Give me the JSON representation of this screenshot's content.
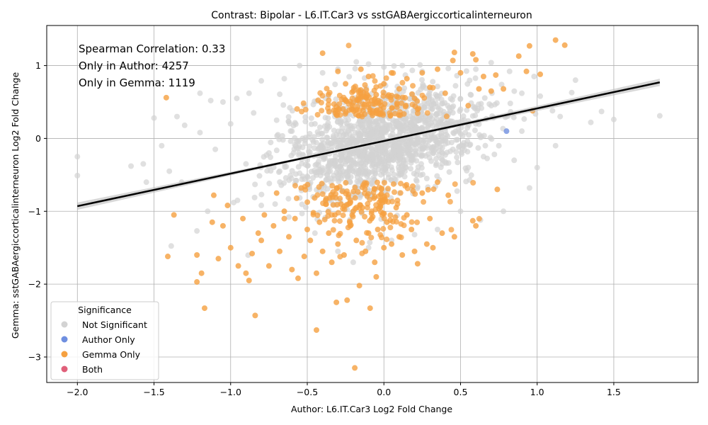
{
  "chart_data": {
    "type": "scatter",
    "title": "Contrast: Bipolar - L6.IT.Car3 vs sstGABAergiccorticalinterneuron",
    "xlabel": "Author: L6.IT.Car3 Log2 Fold Change",
    "ylabel": "Gemma: sstGABAergiccorticalinterneuron Log2 Fold Change",
    "xlim": [
      -2.2,
      2.05
    ],
    "ylim": [
      -3.35,
      1.55
    ],
    "xticks": [
      "-2.0",
      "-1.5",
      "-1.0",
      "-0.5",
      "0.0",
      "0.5",
      "1.0",
      "1.5"
    ],
    "yticks": [
      "1",
      "0",
      "-1",
      "-2",
      "-3"
    ],
    "grid": true,
    "annotations": [
      "Spearman Correlation: 0.33",
      "Only in Author: 4257",
      "Only in Gemma: 1119"
    ],
    "legend": {
      "title": "Significance",
      "placement": "lower-left",
      "entries": [
        {
          "label": "Not Significant",
          "color": "#d3d3d3"
        },
        {
          "label": "Author Only",
          "color": "#6f8fe0"
        },
        {
          "label": "Gemma Only",
          "color": "#f5a040"
        },
        {
          "label": "Both",
          "color": "#e0607a"
        }
      ]
    },
    "regression_line": {
      "x": [
        -2.0,
        1.8
      ],
      "y": [
        -0.93,
        0.77
      ],
      "color": "#000000"
    },
    "series": [
      {
        "name": "Not Significant",
        "color": "#d3d3d3",
        "points": [
          [
            -2.0,
            -0.25
          ],
          [
            -2.0,
            -0.51
          ],
          [
            -1.5,
            0.28
          ],
          [
            -1.35,
            0.3
          ],
          [
            -1.2,
            0.62
          ],
          [
            -1.13,
            0.52
          ],
          [
            -1.05,
            0.5
          ],
          [
            -0.96,
            0.55
          ],
          [
            -0.88,
            0.62
          ],
          [
            -0.8,
            0.79
          ],
          [
            -0.65,
            0.82
          ],
          [
            -0.55,
            1.0
          ],
          [
            -0.4,
            0.9
          ],
          [
            -0.3,
            0.95
          ],
          [
            -0.18,
            1.05
          ],
          [
            -0.1,
            1.02
          ],
          [
            0.0,
            0.98
          ],
          [
            0.12,
            1.0
          ],
          [
            0.25,
            0.92
          ],
          [
            0.42,
            0.96
          ],
          [
            0.6,
            0.95
          ],
          [
            0.7,
            1.04
          ],
          [
            0.82,
            0.92
          ],
          [
            0.9,
            0.62
          ],
          [
            0.98,
            0.85
          ],
          [
            1.02,
            0.58
          ],
          [
            1.1,
            0.38
          ],
          [
            1.15,
            0.3
          ],
          [
            1.25,
            0.8
          ],
          [
            1.35,
            0.22
          ],
          [
            1.42,
            0.37
          ],
          [
            1.5,
            0.26
          ],
          [
            1.8,
            0.31
          ],
          [
            1.12,
            -0.1
          ],
          [
            1.0,
            -0.4
          ],
          [
            0.95,
            -0.68
          ],
          [
            0.78,
            -1.0
          ],
          [
            0.63,
            -1.12
          ],
          [
            0.5,
            -1.0
          ],
          [
            0.35,
            -1.25
          ],
          [
            0.2,
            -1.32
          ],
          [
            0.05,
            -1.4
          ],
          [
            -0.1,
            -1.5
          ],
          [
            -0.2,
            -1.7
          ],
          [
            -0.3,
            -1.55
          ],
          [
            -0.45,
            -1.3
          ],
          [
            -0.62,
            -1.08
          ],
          [
            -0.8,
            -0.92
          ],
          [
            -0.98,
            -0.88
          ],
          [
            -1.15,
            -1.0
          ],
          [
            -1.22,
            -1.27
          ],
          [
            -1.32,
            -0.6
          ],
          [
            -1.4,
            -0.45
          ],
          [
            -1.55,
            -0.6
          ],
          [
            -1.65,
            -0.38
          ],
          [
            -1.57,
            -0.35
          ],
          [
            -1.45,
            -0.1
          ],
          [
            -1.3,
            0.18
          ],
          [
            -1.2,
            0.08
          ],
          [
            -1.1,
            -0.15
          ],
          [
            -1.0,
            0.2
          ],
          [
            -0.9,
            -0.35
          ],
          [
            -0.85,
            0.35
          ],
          [
            -0.75,
            -0.2
          ],
          [
            -0.7,
            0.25
          ],
          [
            -0.68,
            -0.45
          ],
          [
            -0.6,
            0.1
          ],
          [
            -0.58,
            -0.62
          ],
          [
            -0.52,
            0.45
          ],
          [
            -0.5,
            -0.3
          ],
          [
            -0.45,
            0.2
          ],
          [
            -0.42,
            -0.12
          ],
          [
            -0.38,
            0.55
          ],
          [
            -0.35,
            -0.45
          ],
          [
            -0.32,
            0.3
          ],
          [
            -0.28,
            -0.2
          ],
          [
            -0.25,
            0.1
          ],
          [
            -0.22,
            -0.6
          ],
          [
            -0.2,
            0.4
          ],
          [
            -0.18,
            -0.05
          ],
          [
            -0.15,
            0.65
          ],
          [
            -0.12,
            -0.35
          ],
          [
            -0.1,
            0.2
          ],
          [
            -0.08,
            -0.15
          ],
          [
            -0.05,
            0.5
          ],
          [
            -0.02,
            -0.5
          ],
          [
            0.0,
            0.1
          ],
          [
            0.02,
            -0.25
          ],
          [
            0.05,
            0.35
          ],
          [
            0.08,
            -0.1
          ],
          [
            0.1,
            0.6
          ],
          [
            0.12,
            -0.45
          ],
          [
            0.15,
            0.2
          ],
          [
            0.18,
            -0.3
          ],
          [
            0.2,
            0.45
          ],
          [
            0.22,
            -0.05
          ],
          [
            0.25,
            0.15
          ],
          [
            0.28,
            -0.55
          ],
          [
            0.3,
            0.3
          ],
          [
            0.32,
            -0.2
          ],
          [
            0.35,
            0.55
          ],
          [
            0.38,
            -0.35
          ],
          [
            0.4,
            0.1
          ],
          [
            0.45,
            -0.15
          ],
          [
            0.5,
            0.4
          ],
          [
            0.55,
            -0.4
          ],
          [
            0.6,
            0.2
          ],
          [
            0.65,
            -0.25
          ],
          [
            0.7,
            0.45
          ],
          [
            0.75,
            -0.1
          ],
          [
            0.8,
            0.3
          ],
          [
            0.85,
            -0.3
          ],
          [
            0.9,
            0.1
          ]
        ]
      },
      {
        "name": "Author Only",
        "color": "#6f8fe0",
        "points": [
          [
            0.8,
            0.1
          ]
        ]
      },
      {
        "name": "Gemma Only",
        "color": "#f5a040",
        "points": [
          [
            -1.42,
            0.56
          ],
          [
            -1.41,
            -1.62
          ],
          [
            -1.37,
            -1.05
          ],
          [
            -1.22,
            -1.6
          ],
          [
            -1.22,
            -1.97
          ],
          [
            -1.19,
            -1.85
          ],
          [
            -1.17,
            -2.33
          ],
          [
            -1.12,
            -1.15
          ],
          [
            -1.11,
            -0.78
          ],
          [
            -1.08,
            -1.65
          ],
          [
            -1.05,
            -1.2
          ],
          [
            -1.02,
            -0.92
          ],
          [
            -1.0,
            -1.5
          ],
          [
            -0.95,
            -1.75
          ],
          [
            -0.92,
            -1.1
          ],
          [
            -0.9,
            -1.85
          ],
          [
            -0.88,
            -1.95
          ],
          [
            -0.86,
            -1.58
          ],
          [
            -0.84,
            -2.43
          ],
          [
            -0.82,
            -1.3
          ],
          [
            -0.8,
            -1.4
          ],
          [
            -0.78,
            -1.05
          ],
          [
            -0.75,
            -1.75
          ],
          [
            -0.72,
            -1.2
          ],
          [
            -0.7,
            -0.75
          ],
          [
            -0.68,
            -1.55
          ],
          [
            -0.65,
            -1.0
          ],
          [
            -0.62,
            -1.35
          ],
          [
            -0.6,
            -1.8
          ],
          [
            -0.58,
            -1.1
          ],
          [
            -0.56,
            -1.92
          ],
          [
            -0.54,
            -0.68
          ],
          [
            -0.52,
            -1.62
          ],
          [
            -0.5,
            -1.25
          ],
          [
            -0.48,
            -1.4
          ],
          [
            -0.46,
            -1.02
          ],
          [
            -0.44,
            -1.85
          ],
          [
            -0.44,
            -2.63
          ],
          [
            -0.42,
            -1.15
          ],
          [
            -0.4,
            -1.55
          ],
          [
            -0.38,
            -0.85
          ],
          [
            -0.36,
            -1.3
          ],
          [
            -0.34,
            -1.7
          ],
          [
            -0.32,
            -1.05
          ],
          [
            -0.31,
            -2.25
          ],
          [
            -0.3,
            -1.45
          ],
          [
            -0.28,
            -0.9
          ],
          [
            -0.26,
            -1.6
          ],
          [
            -0.24,
            -2.22
          ],
          [
            -0.22,
            -1.2
          ],
          [
            -0.2,
            -1.0
          ],
          [
            -0.19,
            -3.15
          ],
          [
            -0.18,
            -1.4
          ],
          [
            -0.16,
            -2.02
          ],
          [
            -0.14,
            -0.95
          ],
          [
            -0.12,
            -1.55
          ],
          [
            -0.1,
            -1.3
          ],
          [
            -0.09,
            -2.33
          ],
          [
            -0.08,
            -1.1
          ],
          [
            -0.06,
            -1.7
          ],
          [
            -0.05,
            -1.9
          ],
          [
            -0.04,
            -1.25
          ],
          [
            -0.02,
            -0.85
          ],
          [
            0.0,
            -1.5
          ],
          [
            0.02,
            -1.15
          ],
          [
            0.05,
            -1.45
          ],
          [
            0.08,
            -0.95
          ],
          [
            0.1,
            -1.35
          ],
          [
            0.12,
            -1.6
          ],
          [
            0.15,
            -1.05
          ],
          [
            0.18,
            -1.25
          ],
          [
            0.2,
            -1.55
          ],
          [
            0.22,
            -1.72
          ],
          [
            0.25,
            -0.75
          ],
          [
            0.28,
            -1.45
          ],
          [
            0.3,
            -1.1
          ],
          [
            0.32,
            -1.5
          ],
          [
            0.35,
            -0.6
          ],
          [
            0.38,
            -1.3
          ],
          [
            0.42,
            -0.78
          ],
          [
            0.46,
            -1.35
          ],
          [
            0.58,
            -1.13
          ],
          [
            0.74,
            -0.7
          ],
          [
            -0.4,
            1.17
          ],
          [
            -0.3,
            0.92
          ],
          [
            -0.25,
            0.75
          ],
          [
            -0.2,
            0.65
          ],
          [
            -0.15,
            0.95
          ],
          [
            -0.1,
            0.85
          ],
          [
            -0.05,
            0.6
          ],
          [
            0.0,
            0.75
          ],
          [
            0.05,
            0.9
          ],
          [
            0.1,
            0.68
          ],
          [
            0.15,
            0.82
          ],
          [
            0.2,
            0.55
          ],
          [
            0.25,
            0.9
          ],
          [
            0.3,
            0.7
          ],
          [
            0.35,
            0.95
          ],
          [
            0.4,
            0.62
          ],
          [
            0.45,
            1.07
          ],
          [
            0.46,
            1.18
          ],
          [
            0.5,
            0.9
          ],
          [
            0.55,
            0.45
          ],
          [
            0.58,
            1.16
          ],
          [
            0.6,
            1.08
          ],
          [
            0.62,
            0.68
          ],
          [
            0.65,
            0.85
          ],
          [
            0.7,
            0.65
          ],
          [
            0.73,
            0.87
          ],
          [
            0.78,
            0.68
          ],
          [
            0.88,
            1.13
          ],
          [
            0.93,
            0.92
          ],
          [
            0.95,
            1.27
          ],
          [
            1.02,
            0.88
          ],
          [
            1.12,
            1.35
          ],
          [
            1.18,
            1.28
          ],
          [
            0.97,
            0.38
          ],
          [
            0.6,
            -1.2
          ]
        ]
      },
      {
        "name": "Both",
        "color": "#e0607a",
        "points": []
      }
    ]
  }
}
